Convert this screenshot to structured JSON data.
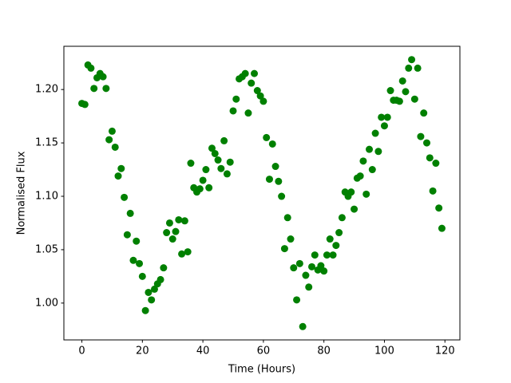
{
  "chart_data": {
    "type": "scatter",
    "xlabel": "Time (Hours)",
    "ylabel": "Normalised Flux",
    "color": "#008000",
    "x": [
      0,
      1,
      2,
      3,
      4,
      5,
      6,
      7,
      8,
      9,
      10,
      11,
      12,
      13,
      14,
      15,
      16,
      17,
      18,
      19,
      20,
      21,
      22,
      23,
      24,
      25,
      26,
      27,
      28,
      29,
      30,
      31,
      32,
      33,
      34,
      35,
      36,
      37,
      38,
      39,
      40,
      41,
      42,
      43,
      44,
      45,
      46,
      47,
      48,
      49,
      50,
      51,
      52,
      53,
      54,
      55,
      56,
      57,
      58,
      59,
      60,
      61,
      62,
      63,
      64,
      65,
      66,
      67,
      68,
      69,
      70,
      71,
      72,
      73,
      74,
      75,
      76,
      77,
      78,
      79,
      80,
      81,
      82,
      83,
      84,
      85,
      86,
      87,
      88,
      89,
      90,
      91,
      92,
      93,
      94,
      95,
      96,
      97,
      98,
      99,
      100,
      101,
      102,
      103,
      104,
      105,
      106,
      107,
      108,
      109,
      110,
      111,
      112,
      113,
      114,
      115,
      116,
      117,
      118,
      119
    ],
    "values": [
      1.187,
      1.186,
      1.223,
      1.22,
      1.201,
      1.211,
      1.215,
      1.212,
      1.201,
      1.153,
      1.161,
      1.146,
      1.119,
      1.126,
      1.099,
      1.064,
      1.084,
      1.04,
      1.058,
      1.037,
      1.025,
      0.993,
      1.01,
      1.003,
      1.013,
      1.018,
      1.022,
      1.033,
      1.066,
      1.075,
      1.06,
      1.067,
      1.078,
      1.046,
      1.077,
      1.048,
      1.131,
      1.108,
      1.104,
      1.107,
      1.115,
      1.125,
      1.108,
      1.145,
      1.14,
      1.134,
      1.126,
      1.152,
      1.121,
      1.132,
      1.18,
      1.191,
      1.21,
      1.212,
      1.215,
      1.178,
      1.206,
      1.215,
      1.199,
      1.194,
      1.189,
      1.155,
      1.116,
      1.149,
      1.128,
      1.114,
      1.1,
      1.051,
      1.08,
      1.06,
      1.033,
      1.003,
      1.037,
      0.978,
      1.026,
      1.015,
      1.034,
      1.045,
      1.031,
      1.035,
      1.03,
      1.045,
      1.06,
      1.045,
      1.054,
      1.066,
      1.08,
      1.104,
      1.1,
      1.104,
      1.088,
      1.117,
      1.119,
      1.133,
      1.102,
      1.144,
      1.125,
      1.159,
      1.142,
      1.174,
      1.166,
      1.174,
      1.199,
      1.19,
      1.19,
      1.189,
      1.208,
      1.198,
      1.22,
      1.228,
      1.191,
      1.22,
      1.156,
      1.178,
      1.15,
      1.136,
      1.105,
      1.131,
      1.089,
      1.07
    ],
    "xlim": [
      -5.95,
      124.95
    ],
    "xticks": [
      0,
      20,
      40,
      60,
      80,
      100,
      120
    ],
    "ylim": [
      0.9655,
      1.2405
    ],
    "yticks": [
      {
        "value": 1,
        "label": "1.00"
      },
      1.05,
      {
        "value": 1.1,
        "label": "1.10"
      },
      1.15,
      {
        "value": 1.2,
        "label": "1.20"
      }
    ]
  }
}
